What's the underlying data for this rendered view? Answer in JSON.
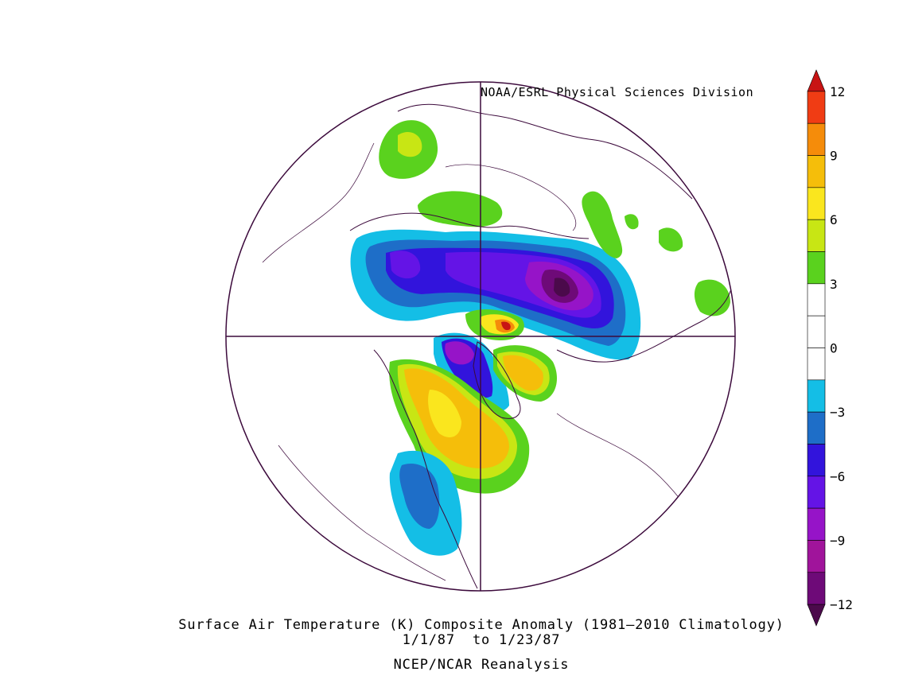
{
  "credit": "NOAA/ESRL Physical Sciences Division",
  "caption": {
    "title": "Surface Air Temperature (K) Composite Anomaly (1981–2010 Climatology)",
    "dates": "1/1/87  to 1/23/87",
    "source": "NCEP/NCAR Reanalysis"
  },
  "colorbar": {
    "levels": [
      {
        "from": 12,
        "to": 13,
        "color": "#c81414"
      },
      {
        "from": 10.5,
        "to": 12,
        "color": "#f03c14"
      },
      {
        "from": 9,
        "to": 10.5,
        "color": "#f58c0a"
      },
      {
        "from": 7.5,
        "to": 9,
        "color": "#f5be0a"
      },
      {
        "from": 6,
        "to": 7.5,
        "color": "#fae61e"
      },
      {
        "from": 4.5,
        "to": 6,
        "color": "#c8e614"
      },
      {
        "from": 3,
        "to": 4.5,
        "color": "#5ad21e"
      },
      {
        "from": 1.5,
        "to": 3,
        "color": "#ffffff"
      },
      {
        "from": 0,
        "to": 1.5,
        "color": "#ffffff"
      },
      {
        "from": -1.5,
        "to": 0,
        "color": "#ffffff"
      },
      {
        "from": -3,
        "to": -1.5,
        "color": "#14bee6"
      },
      {
        "from": -4.5,
        "to": -3,
        "color": "#1e6ec8"
      },
      {
        "from": -6,
        "to": -4.5,
        "color": "#3214dc"
      },
      {
        "from": -7.5,
        "to": -6,
        "color": "#6414e6"
      },
      {
        "from": -9,
        "to": -7.5,
        "color": "#9614c8"
      },
      {
        "from": -10.5,
        "to": -9,
        "color": "#a0149b"
      },
      {
        "from": -12,
        "to": -10.5,
        "color": "#6e0a78"
      },
      {
        "from": -13,
        "to": -12,
        "color": "#4b0a4b"
      }
    ],
    "tick_labels": [
      "12",
      "9",
      "6",
      "3",
      "0",
      "−3",
      "−6",
      "−9",
      "−12"
    ],
    "tick_values": [
      12,
      9,
      6,
      3,
      0,
      -3,
      -6,
      -9,
      -12
    ]
  },
  "map": {
    "projection": "north polar stereographic",
    "outline_color": "#3c0a3c",
    "anomaly_blobs": [
      {
        "name": "cold-siberia-core",
        "level": -12
      },
      {
        "name": "cold-arctic-band",
        "level": -6
      },
      {
        "name": "cold-greenland",
        "level": -9
      },
      {
        "name": "cold-mexico",
        "level": -3
      },
      {
        "name": "warm-canada",
        "level": 6
      },
      {
        "name": "warm-baffin",
        "level": 6
      },
      {
        "name": "warm-barents",
        "level": 9
      },
      {
        "name": "warm-north-africa",
        "level": 3
      },
      {
        "name": "warm-pacific",
        "level": 3
      }
    ]
  }
}
